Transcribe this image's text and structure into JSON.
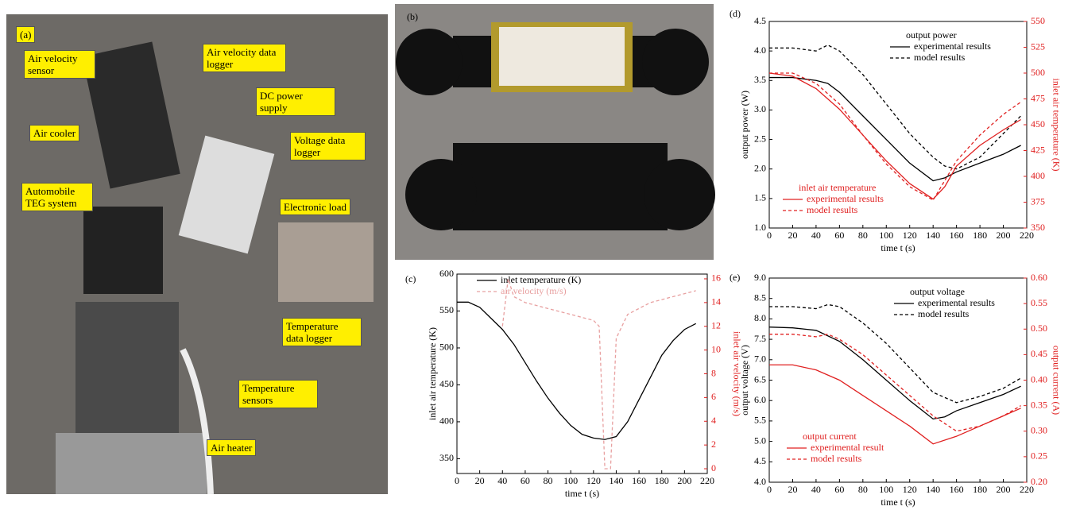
{
  "photo_a": {
    "label": "(a)",
    "annotations": [
      "Air velocity sensor",
      "Air velocity data logger",
      "DC power supply",
      "Air cooler",
      "Voltage data logger",
      "Automobile TEG system",
      "Electronic load",
      "Temperature data logger",
      "Temperature sensors",
      "Air heater"
    ]
  },
  "photo_b": {
    "label": "(b)"
  },
  "chart_data": [
    {
      "type": "line",
      "label": "(c)",
      "x_label": "time t (s)",
      "y_label": "inlet air temperature (K)",
      "y2_label": "inlet air velocity (m/s)",
      "xlim": [
        0,
        220
      ],
      "xticks": [
        0,
        20,
        40,
        60,
        80,
        100,
        120,
        140,
        160,
        180,
        200,
        220
      ],
      "ylim": [
        330,
        600
      ],
      "yticks": [
        350,
        400,
        450,
        500,
        550,
        600
      ],
      "y2lim": [
        -0.4,
        16.4
      ],
      "y2ticks": [
        0,
        2,
        4,
        6,
        8,
        10,
        12,
        14,
        16
      ],
      "series_groups": [
        {
          "series": [
            {
              "name": "inlet temperature (K)",
              "color": "#000000",
              "line_style": "solid",
              "axis": "y",
              "x": [
                0,
                10,
                20,
                30,
                40,
                50,
                60,
                70,
                80,
                90,
                100,
                110,
                120,
                130,
                135,
                140,
                150,
                160,
                170,
                180,
                190,
                200,
                210
              ],
              "values": [
                562,
                562,
                555,
                540,
                525,
                505,
                480,
                455,
                432,
                412,
                395,
                383,
                378,
                376,
                378,
                380,
                400,
                430,
                460,
                490,
                510,
                525,
                533
              ]
            },
            {
              "name": "air velocity (m/s)",
              "color": "#e8a0a0",
              "line_style": "dashed",
              "axis": "y2",
              "x": [
                40,
                45,
                50,
                60,
                80,
                100,
                120,
                125,
                130,
                135,
                140,
                150,
                170,
                190,
                210
              ],
              "values": [
                12,
                16,
                14.5,
                14,
                13.5,
                13,
                12.5,
                12,
                0,
                0,
                11,
                13,
                14,
                14.5,
                15
              ]
            }
          ]
        }
      ]
    },
    {
      "type": "line",
      "label": "(d)",
      "x_label": "time t (s)",
      "y_label": "output power (W)",
      "y2_label": "inlet air temperature (K)",
      "xlim": [
        0,
        220
      ],
      "xticks": [
        0,
        20,
        40,
        60,
        80,
        100,
        120,
        140,
        160,
        180,
        200,
        220
      ],
      "ylim": [
        1,
        4.5
      ],
      "yticks": [
        {
          "value": 1,
          "label": "1.0"
        },
        1.5,
        {
          "value": 2,
          "label": "2.0"
        },
        2.5,
        {
          "value": 3,
          "label": "3.0"
        },
        3.5,
        {
          "value": 4,
          "label": "4.0"
        },
        4.5
      ],
      "y2lim": [
        350,
        550
      ],
      "y2ticks": [
        350,
        375,
        400,
        425,
        450,
        475,
        500,
        525,
        550
      ],
      "series_groups": [
        {
          "title": "output power",
          "series": [
            {
              "name": "experimental results",
              "color": "#000000",
              "line_style": "solid",
              "axis": "y",
              "x": [
                0,
                20,
                40,
                50,
                60,
                80,
                100,
                120,
                140,
                150,
                160,
                180,
                200,
                215
              ],
              "values": [
                3.55,
                3.55,
                3.5,
                3.45,
                3.3,
                2.9,
                2.5,
                2.1,
                1.8,
                1.85,
                1.95,
                2.1,
                2.25,
                2.4
              ]
            },
            {
              "name": "model results",
              "color": "#000000",
              "line_style": "dashed",
              "axis": "y",
              "x": [
                0,
                20,
                40,
                50,
                60,
                80,
                100,
                120,
                140,
                150,
                160,
                180,
                200,
                215
              ],
              "values": [
                4.05,
                4.05,
                4.0,
                4.1,
                4.0,
                3.6,
                3.1,
                2.6,
                2.2,
                2.05,
                2.0,
                2.2,
                2.6,
                2.9
              ]
            }
          ]
        },
        {
          "title": "inlet air temperature",
          "series": [
            {
              "name": "experimental results",
              "color": "#e02020",
              "line_style": "solid",
              "axis": "y2",
              "x": [
                0,
                20,
                40,
                60,
                80,
                100,
                120,
                140,
                150,
                160,
                180,
                200,
                215
              ],
              "values": [
                500,
                497,
                485,
                465,
                440,
                415,
                393,
                378,
                390,
                410,
                430,
                445,
                455
              ]
            },
            {
              "name": "model results",
              "color": "#e02020",
              "line_style": "dashed",
              "axis": "y2",
              "x": [
                0,
                20,
                40,
                60,
                80,
                100,
                120,
                140,
                160,
                180,
                200,
                215
              ],
              "values": [
                500,
                500,
                490,
                470,
                440,
                412,
                390,
                377,
                415,
                440,
                460,
                472
              ]
            }
          ]
        }
      ]
    },
    {
      "type": "line",
      "label": "(e)",
      "x_label": "time t (s)",
      "y_label": "output voltage (V)",
      "y2_label": "output current (A)",
      "xlim": [
        0,
        220
      ],
      "xticks": [
        0,
        20,
        40,
        60,
        80,
        100,
        120,
        140,
        160,
        180,
        200,
        220
      ],
      "ylim": [
        4,
        9
      ],
      "yticks": [
        {
          "value": 4,
          "label": "4.0"
        },
        4.5,
        {
          "value": 5,
          "label": "5.0"
        },
        5.5,
        {
          "value": 6,
          "label": "6.0"
        },
        6.5,
        {
          "value": 7,
          "label": "7.0"
        },
        7.5,
        {
          "value": 8,
          "label": "8.0"
        },
        8.5,
        {
          "value": 9,
          "label": "9.0"
        }
      ],
      "y2lim": [
        0.2,
        0.6
      ],
      "y2ticks": [
        {
          "value": 0.2,
          "label": "0.20"
        },
        0.25,
        {
          "value": 0.3,
          "label": "0.30"
        },
        0.35,
        {
          "value": 0.4,
          "label": "0.40"
        },
        0.45,
        {
          "value": 0.5,
          "label": "0.50"
        },
        0.55,
        {
          "value": 0.6,
          "label": "0.60"
        }
      ],
      "series_groups": [
        {
          "title": "output voltage",
          "series": [
            {
              "name": "experimental results",
              "color": "#000000",
              "line_style": "solid",
              "axis": "y",
              "x": [
                0,
                20,
                40,
                60,
                80,
                100,
                120,
                140,
                150,
                160,
                180,
                200,
                215
              ],
              "values": [
                7.8,
                7.78,
                7.72,
                7.45,
                7.0,
                6.5,
                6.0,
                5.55,
                5.6,
                5.75,
                5.95,
                6.15,
                6.35
              ]
            },
            {
              "name": "model results",
              "color": "#000000",
              "line_style": "dashed",
              "axis": "y",
              "x": [
                0,
                20,
                40,
                50,
                60,
                80,
                100,
                120,
                140,
                160,
                180,
                200,
                215
              ],
              "values": [
                8.3,
                8.3,
                8.25,
                8.35,
                8.3,
                7.9,
                7.4,
                6.8,
                6.2,
                5.95,
                6.1,
                6.3,
                6.55
              ]
            }
          ]
        },
        {
          "title": "output current",
          "series": [
            {
              "name": "experimental result",
              "color": "#e02020",
              "line_style": "solid",
              "axis": "y2",
              "x": [
                0,
                20,
                40,
                60,
                80,
                100,
                120,
                140,
                160,
                180,
                200,
                215
              ],
              "values": [
                0.43,
                0.43,
                0.42,
                0.4,
                0.37,
                0.34,
                0.31,
                0.275,
                0.29,
                0.31,
                0.33,
                0.345
              ]
            },
            {
              "name": "model results",
              "color": "#e02020",
              "line_style": "dashed",
              "axis": "y2",
              "x": [
                0,
                20,
                40,
                50,
                60,
                80,
                100,
                120,
                140,
                160,
                180,
                200,
                215
              ],
              "values": [
                0.49,
                0.49,
                0.485,
                0.49,
                0.48,
                0.45,
                0.41,
                0.37,
                0.33,
                0.3,
                0.31,
                0.33,
                0.35
              ]
            }
          ]
        }
      ]
    }
  ]
}
